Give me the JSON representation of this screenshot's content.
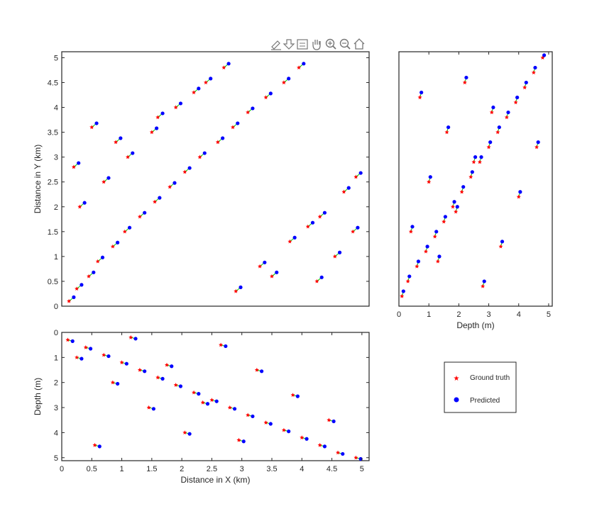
{
  "toolbar": {
    "icons": [
      "brush-icon",
      "export-icon",
      "data-tips-icon",
      "pan-hand-icon",
      "zoom-in-icon",
      "zoom-out-icon",
      "home-icon"
    ]
  },
  "colors": {
    "ground_truth": "#ff0000",
    "predicted": "#0000ff",
    "connector": "#00cc00",
    "axes": "#262626"
  },
  "chart_data": [
    {
      "id": "xy",
      "type": "scatter",
      "title": "",
      "xlabel": "",
      "ylabel": "Distance in Y (km)",
      "xlim": [
        0,
        5.12
      ],
      "ylim": [
        0,
        5.12
      ],
      "xticks": [],
      "yticks": [
        "0",
        "0.5",
        "1",
        "1.5",
        "2",
        "2.5",
        "3",
        "3.5",
        "4",
        "4.5",
        "5"
      ],
      "grid": false,
      "series": [
        {
          "name": "Ground truth",
          "marker": "star",
          "color": "#ff0000",
          "x": [
            0.12,
            0.25,
            0.45,
            0.6,
            0.85,
            1.05,
            1.3,
            1.55,
            1.8,
            2.05,
            2.3,
            2.6,
            2.85,
            3.1,
            3.4,
            3.7,
            3.95,
            4.25,
            4.55,
            4.85,
            0.3,
            0.7,
            1.1,
            1.5,
            1.9,
            2.4,
            2.9,
            3.3,
            3.8,
            4.3,
            4.7,
            0.2,
            0.9,
            1.6,
            2.2,
            2.7,
            3.5,
            4.1,
            4.9,
            0.5
          ],
          "y": [
            0.1,
            0.35,
            0.6,
            0.9,
            1.2,
            1.5,
            1.8,
            2.1,
            2.4,
            2.7,
            3.0,
            3.3,
            3.6,
            3.9,
            4.2,
            4.5,
            4.8,
            0.5,
            1.0,
            1.5,
            2.0,
            2.5,
            3.0,
            3.5,
            4.0,
            4.5,
            0.3,
            0.8,
            1.3,
            1.8,
            2.3,
            2.8,
            3.3,
            3.8,
            4.3,
            4.8,
            0.6,
            1.6,
            2.6,
            3.6
          ]
        },
        {
          "name": "Predicted",
          "marker": "circle",
          "color": "#0000ff",
          "x": [
            0.2,
            0.33,
            0.53,
            0.68,
            0.93,
            1.13,
            1.38,
            1.63,
            1.88,
            2.13,
            2.38,
            2.68,
            2.93,
            3.18,
            3.48,
            3.78,
            4.03,
            4.33,
            4.63,
            4.93,
            0.38,
            0.78,
            1.18,
            1.58,
            1.98,
            2.48,
            2.98,
            3.38,
            3.88,
            4.38,
            4.78,
            0.28,
            0.98,
            1.68,
            2.28,
            2.78,
            3.58,
            4.18,
            4.98,
            0.58
          ],
          "y": [
            0.18,
            0.43,
            0.68,
            0.98,
            1.28,
            1.58,
            1.88,
            2.18,
            2.48,
            2.78,
            3.08,
            3.38,
            3.68,
            3.98,
            4.28,
            4.58,
            4.88,
            0.58,
            1.08,
            1.58,
            2.08,
            2.58,
            3.08,
            3.58,
            4.08,
            4.58,
            0.38,
            0.88,
            1.38,
            1.88,
            2.38,
            2.88,
            3.38,
            3.88,
            4.38,
            4.88,
            0.68,
            1.68,
            2.68,
            3.68
          ]
        }
      ]
    },
    {
      "id": "depth-y",
      "type": "scatter",
      "title": "",
      "xlabel": "Depth (m)",
      "ylabel": "",
      "xlim": [
        0,
        5.12
      ],
      "ylim": [
        0,
        5.12
      ],
      "xticks": [
        "0",
        "1",
        "2",
        "3",
        "4",
        "5"
      ],
      "yticks": [],
      "grid": false,
      "series": [
        {
          "name": "Ground truth",
          "marker": "star",
          "color": "#ff0000",
          "x": [
            0.1,
            0.3,
            0.6,
            0.9,
            1.2,
            1.5,
            1.8,
            2.1,
            2.4,
            2.7,
            3.0,
            3.3,
            3.6,
            3.9,
            4.2,
            4.5,
            4.8,
            0.4,
            1.0,
            1.6,
            2.2,
            2.8,
            3.4,
            4.0,
            4.6,
            0.7,
            1.3,
            1.9,
            2.5,
            3.1
          ],
          "y": [
            0.2,
            0.5,
            0.8,
            1.1,
            1.4,
            1.7,
            2.0,
            2.3,
            2.6,
            2.9,
            3.2,
            3.5,
            3.8,
            4.1,
            4.4,
            4.7,
            5.0,
            1.5,
            2.5,
            3.5,
            4.5,
            0.4,
            1.2,
            2.2,
            3.2,
            4.2,
            0.9,
            1.9,
            2.9,
            3.9
          ]
        },
        {
          "name": "Predicted",
          "marker": "circle",
          "color": "#0000ff",
          "x": [
            0.15,
            0.35,
            0.65,
            0.95,
            1.25,
            1.55,
            1.85,
            2.15,
            2.45,
            2.75,
            3.05,
            3.35,
            3.65,
            3.95,
            4.25,
            4.55,
            4.85,
            0.45,
            1.05,
            1.65,
            2.25,
            2.85,
            3.45,
            4.05,
            4.65,
            0.75,
            1.35,
            1.95,
            2.55,
            3.15
          ],
          "y": [
            0.3,
            0.6,
            0.9,
            1.2,
            1.5,
            1.8,
            2.1,
            2.4,
            2.7,
            3.0,
            3.3,
            3.6,
            3.9,
            4.2,
            4.5,
            4.8,
            5.05,
            1.6,
            2.6,
            3.6,
            4.6,
            0.5,
            1.3,
            2.3,
            3.3,
            4.3,
            1.0,
            2.0,
            3.0,
            4.0
          ]
        }
      ]
    },
    {
      "id": "x-depth",
      "type": "scatter",
      "title": "",
      "xlabel": "Distance in X (km)",
      "ylabel": "Depth (m)",
      "xlim": [
        0,
        5.12
      ],
      "ylim": [
        0,
        5.12
      ],
      "y_reversed": true,
      "xticks": [
        "0",
        "0.5",
        "1",
        "1.5",
        "2",
        "2.5",
        "3",
        "3.5",
        "4",
        "4.5",
        "5"
      ],
      "yticks": [
        "0",
        "1",
        "2",
        "3",
        "4",
        "5"
      ],
      "grid": false,
      "series": [
        {
          "name": "Ground truth",
          "marker": "star",
          "color": "#ff0000",
          "x": [
            0.1,
            0.4,
            0.7,
            1.0,
            1.3,
            1.6,
            1.9,
            2.2,
            2.5,
            2.8,
            3.1,
            3.4,
            3.7,
            4.0,
            4.3,
            4.6,
            4.9,
            0.25,
            0.85,
            1.45,
            2.05,
            2.65,
            3.25,
            3.85,
            4.45,
            0.55,
            1.15,
            1.75,
            2.35,
            2.95
          ],
          "y": [
            0.3,
            0.6,
            0.9,
            1.2,
            1.5,
            1.8,
            2.1,
            2.4,
            2.7,
            3.0,
            3.3,
            3.6,
            3.9,
            4.2,
            4.5,
            4.8,
            5.0,
            1.0,
            2.0,
            3.0,
            4.0,
            0.5,
            1.5,
            2.5,
            3.5,
            4.5,
            0.2,
            1.3,
            2.8,
            4.3
          ]
        },
        {
          "name": "Predicted",
          "marker": "circle",
          "color": "#0000ff",
          "x": [
            0.18,
            0.48,
            0.78,
            1.08,
            1.38,
            1.68,
            1.98,
            2.28,
            2.58,
            2.88,
            3.18,
            3.48,
            3.78,
            4.08,
            4.38,
            4.68,
            4.98,
            0.33,
            0.93,
            1.53,
            2.13,
            2.73,
            3.33,
            3.93,
            4.53,
            0.63,
            1.23,
            1.83,
            2.43,
            3.03
          ],
          "y": [
            0.35,
            0.65,
            0.95,
            1.25,
            1.55,
            1.85,
            2.15,
            2.45,
            2.75,
            3.05,
            3.35,
            3.65,
            3.95,
            4.25,
            4.55,
            4.85,
            5.05,
            1.05,
            2.05,
            3.05,
            4.05,
            0.55,
            1.55,
            2.55,
            3.55,
            4.55,
            0.25,
            1.35,
            2.85,
            4.35
          ]
        }
      ]
    }
  ],
  "legend": {
    "placement": "lower-right",
    "entries": [
      {
        "label": "Ground truth",
        "marker": "star",
        "color": "#ff0000"
      },
      {
        "label": "Predicted",
        "marker": "circle",
        "color": "#0000ff"
      }
    ]
  }
}
